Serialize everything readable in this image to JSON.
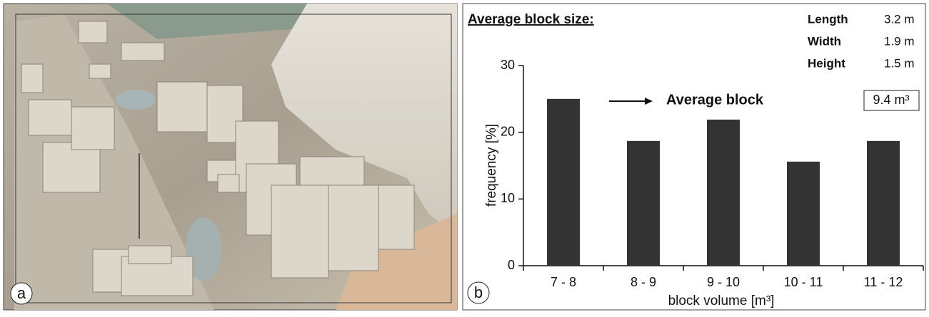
{
  "photo": {
    "label": "a"
  },
  "chart_data": {
    "type": "bar",
    "panel_label": "b",
    "title": "Average block size:",
    "dimensions": [
      {
        "name": "Length",
        "value": "3.2 m"
      },
      {
        "name": "Width",
        "value": "1.9 m"
      },
      {
        "name": "Height",
        "value": "1.5 m"
      }
    ],
    "annotation": "Average block",
    "average_volume": "9.4 m³",
    "x_label": "block volume [m³]",
    "y_label": "frequency [%]",
    "categories": [
      "7 - 8",
      "8 - 9",
      "9 - 10",
      "10 - 11",
      "11 - 12"
    ],
    "values": [
      25,
      18.7,
      21.9,
      15.6,
      18.7
    ],
    "color": "#333333",
    "ylim": [
      0,
      30
    ],
    "yticks": [
      0,
      10,
      20,
      30
    ]
  }
}
